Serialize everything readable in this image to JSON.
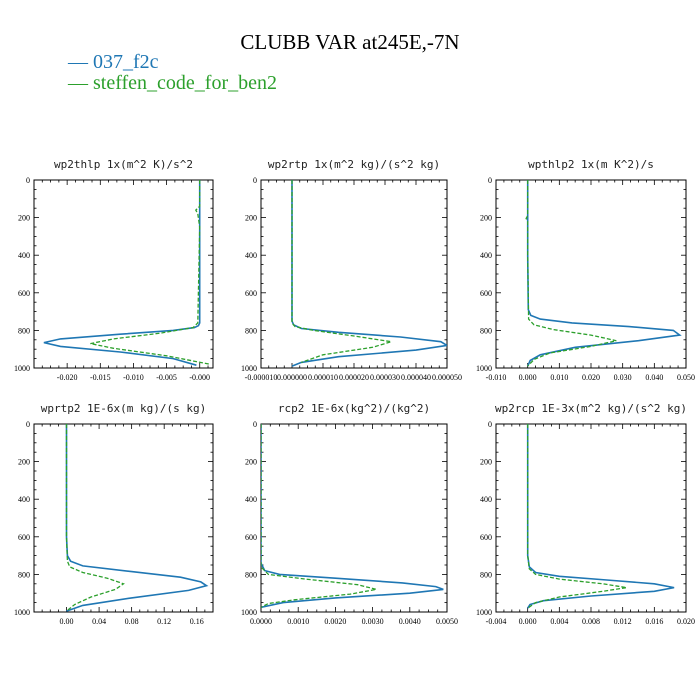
{
  "title": "CLUBB VAR at245E,-7N",
  "colors": {
    "series_0": "#1f77b4",
    "series_1": "#2ca02c"
  },
  "legend": [
    {
      "label": "037_f2c",
      "color": "#1f77b4",
      "style": "solid"
    },
    {
      "label": "steffen_code_for_ben2",
      "color": "#2ca02c",
      "style": "dashed"
    }
  ],
  "chart_data": [
    {
      "type": "line",
      "title": "wp2thlp  1x(m^2 K)/s^2",
      "xlim": [
        -0.025,
        0.002
      ],
      "ylim": [
        1000,
        0
      ],
      "y_inverted": true,
      "xticks": [
        -0.02,
        -0.015,
        -0.01,
        -0.005,
        0.0
      ],
      "xtick_labels": [
        "-0.020",
        "-0.015",
        "-0.010",
        "-0.005",
        "-0.000"
      ],
      "yticks": [
        0,
        200,
        400,
        600,
        800,
        1000
      ],
      "series": [
        {
          "name": "037_f2c",
          "x": [
            0,
            0,
            0,
            0,
            0,
            -0.0002,
            -0.0008,
            -0.004,
            -0.012,
            -0.021,
            -0.0235,
            -0.021,
            -0.012,
            -0.004,
            -0.0005
          ],
          "y": [
            0,
            200,
            400,
            600,
            760,
            775,
            785,
            800,
            820,
            845,
            865,
            885,
            915,
            950,
            985
          ]
        },
        {
          "name": "steffen_code_for_ben2",
          "x": [
            0,
            0,
            0,
            -0.0006,
            -0.0003,
            0,
            -0.0003,
            -0.001,
            -0.006,
            -0.013,
            -0.0165,
            -0.013,
            -0.005,
            0.0015
          ],
          "y": [
            0,
            120,
            140,
            160,
            180,
            250,
            760,
            785,
            815,
            845,
            870,
            895,
            935,
            980
          ]
        }
      ]
    },
    {
      "type": "line",
      "title": "wp2rtp  1x(m^2 kg)/(s^2 kg)",
      "xlim": [
        -1e-05,
        5e-05
      ],
      "ylim": [
        1000,
        0
      ],
      "y_inverted": true,
      "xticks": [
        -1e-05,
        0.0,
        1e-05,
        2e-05,
        3e-05,
        4e-05,
        5e-05
      ],
      "xtick_labels": [
        "-0.000010",
        "0.000000",
        "0.000010",
        "0.000020",
        "0.000030",
        "0.000040",
        "0.000050"
      ],
      "yticks": [
        0,
        200,
        400,
        600,
        800,
        1000
      ],
      "series": [
        {
          "name": "037_f2c",
          "x": [
            0,
            0,
            0,
            5e-07,
            3e-06,
            1.5e-05,
            3.5e-05,
            4.8e-05,
            5e-05,
            4e-05,
            1.5e-05,
            3e-06,
            0
          ],
          "y": [
            0,
            400,
            750,
            770,
            790,
            810,
            835,
            860,
            880,
            905,
            940,
            970,
            990
          ]
        },
        {
          "name": "steffen_code_for_ben2",
          "x": [
            0,
            0,
            0,
            1e-06,
            7e-06,
            2e-05,
            3.2e-05,
            2.6e-05,
            1e-05,
            3e-06
          ],
          "y": [
            0,
            400,
            760,
            780,
            800,
            830,
            860,
            890,
            930,
            970
          ]
        }
      ]
    },
    {
      "type": "line",
      "title": "wpthlp2  1x(m K^2)/s",
      "xlim": [
        -0.01,
        0.05
      ],
      "ylim": [
        1000,
        0
      ],
      "y_inverted": true,
      "xticks": [
        -0.01,
        0.0,
        0.01,
        0.02,
        0.03,
        0.04,
        0.05
      ],
      "xtick_labels": [
        "-0.010",
        "0.000",
        "0.010",
        "0.020",
        "0.030",
        "0.040",
        "0.050"
      ],
      "yticks": [
        0,
        200,
        400,
        600,
        800,
        1000
      ],
      "series": [
        {
          "name": "037_f2c",
          "x": [
            0,
            0,
            0,
            0.0002,
            0.001,
            0.004,
            0.014,
            0.032,
            0.046,
            0.048,
            0.035,
            0.015,
            0.004,
            0.0008,
            0
          ],
          "y": [
            0,
            200,
            400,
            690,
            720,
            740,
            760,
            780,
            800,
            825,
            855,
            890,
            930,
            960,
            990
          ]
        },
        {
          "name": "steffen_code_for_ben2",
          "x": [
            0,
            0,
            -0.0005,
            0,
            0,
            0.0003,
            0.002,
            0.008,
            0.02,
            0.028,
            0.02,
            0.007,
            0.002,
            0
          ],
          "y": [
            0,
            190,
            205,
            220,
            400,
            740,
            770,
            795,
            825,
            855,
            885,
            920,
            955,
            990
          ]
        }
      ]
    },
    {
      "type": "line",
      "title": "wprtp2  1E-6x(m kg)/(s kg)",
      "xlim": [
        -0.04,
        0.18
      ],
      "ylim": [
        1000,
        0
      ],
      "y_inverted": true,
      "xticks": [
        0.0,
        0.04,
        0.08,
        0.12,
        0.16
      ],
      "xtick_labels": [
        "0.00",
        "0.04",
        "0.08",
        "0.12",
        "0.16"
      ],
      "yticks": [
        0,
        200,
        400,
        600,
        800,
        1000
      ],
      "series": [
        {
          "name": "037_f2c",
          "x": [
            0,
            0,
            0.001,
            0.005,
            0.02,
            0.08,
            0.14,
            0.165,
            0.172,
            0.15,
            0.08,
            0.02,
            0
          ],
          "y": [
            0,
            600,
            700,
            730,
            755,
            785,
            815,
            840,
            860,
            885,
            925,
            965,
            995
          ]
        },
        {
          "name": "steffen_code_for_ben2",
          "x": [
            0,
            0,
            0.001,
            0.004,
            0.02,
            0.05,
            0.07,
            0.06,
            0.03,
            0.01,
            0
          ],
          "y": [
            0,
            600,
            730,
            760,
            790,
            820,
            850,
            880,
            920,
            960,
            995
          ]
        }
      ]
    },
    {
      "type": "line",
      "title": "rcp2  1E-6x(kg^2)/(kg^2)",
      "xlim": [
        0.0,
        0.005
      ],
      "ylim": [
        1000,
        0
      ],
      "y_inverted": true,
      "xticks": [
        0.0,
        0.001,
        0.002,
        0.003,
        0.004,
        0.005
      ],
      "xtick_labels": [
        "0.0000",
        "0.0010",
        "0.0020",
        "0.0030",
        "0.0040",
        "0.0050"
      ],
      "yticks": [
        0,
        200,
        400,
        600,
        800,
        1000
      ],
      "series": [
        {
          "name": "037_f2c",
          "x": [
            0,
            0,
            0.0001,
            0.0005,
            0.002,
            0.0038,
            0.0047,
            0.0049,
            0.004,
            0.002,
            0.0006,
            0
          ],
          "y": [
            0,
            740,
            780,
            800,
            820,
            845,
            865,
            880,
            900,
            925,
            950,
            975
          ]
        },
        {
          "name": "steffen_code_for_ben2",
          "x": [
            0,
            0,
            0.0002,
            0.0012,
            0.0026,
            0.0031,
            0.0024,
            0.0009,
            0.0002,
            0
          ],
          "y": [
            0,
            760,
            800,
            825,
            855,
            880,
            905,
            935,
            955,
            975
          ]
        }
      ]
    },
    {
      "type": "line",
      "title": "wp2rcp  1E-3x(m^2 kg)/(s^2 kg)",
      "xlim": [
        -0.004,
        0.02
      ],
      "ylim": [
        1000,
        0
      ],
      "y_inverted": true,
      "xticks": [
        -0.004,
        0.0,
        0.004,
        0.008,
        0.012,
        0.016,
        0.02
      ],
      "xtick_labels": [
        "-0.004",
        "0.000",
        "0.004",
        "0.008",
        "0.012",
        "0.016",
        "0.020"
      ],
      "yticks": [
        0,
        200,
        400,
        600,
        800,
        1000
      ],
      "series": [
        {
          "name": "037_f2c",
          "x": [
            0,
            0,
            0.0002,
            0.001,
            0.004,
            0.01,
            0.016,
            0.0185,
            0.016,
            0.008,
            0.002,
            0.0003,
            0
          ],
          "y": [
            0,
            700,
            760,
            790,
            810,
            830,
            850,
            870,
            890,
            915,
            940,
            960,
            980
          ]
        },
        {
          "name": "steffen_code_for_ben2",
          "x": [
            0,
            0,
            0.0002,
            0.001,
            0.004,
            0.0095,
            0.0125,
            0.0095,
            0.004,
            0.001,
            0
          ],
          "y": [
            0,
            700,
            770,
            800,
            825,
            850,
            870,
            890,
            920,
            950,
            980
          ]
        }
      ]
    }
  ]
}
